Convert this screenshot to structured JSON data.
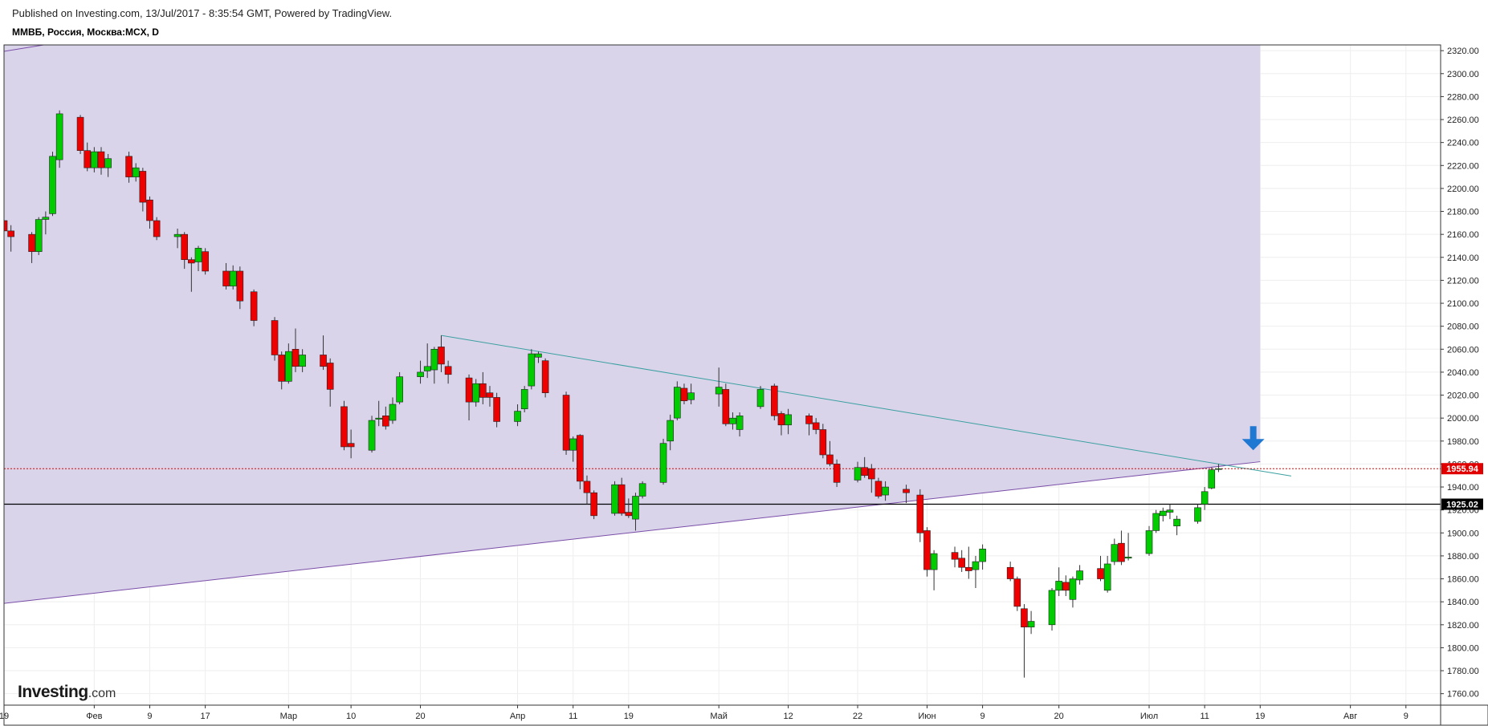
{
  "header": {
    "published": "Published on Investing.com, 13/Jul/2017 - 8:35:54 GMT, Powered by TradingView.",
    "symbol": "ММВБ, Россия, Москва:MCX, D"
  },
  "logo": {
    "brand": "Investing",
    "domain": ".com"
  },
  "colors": {
    "up": "#00cc00",
    "down": "#ee0000",
    "shade": "#d8d2ea",
    "upper_trend": "#3aa0a0",
    "lower_trend": "#7a4ea8",
    "current_price": "#e00000",
    "marker": "#1f78d1"
  },
  "chart_data": {
    "type": "candlestick",
    "x_domain": [
      "2017-01-19",
      "2017-08-14"
    ],
    "ylim": [
      1750,
      2325
    ],
    "y_ticks": [
      1760,
      1780,
      1800,
      1820,
      1840,
      1860,
      1880,
      1900,
      1920,
      1940,
      1960,
      1980,
      2000,
      2020,
      2040,
      2060,
      2080,
      2100,
      2120,
      2140,
      2160,
      2180,
      2200,
      2220,
      2240,
      2260,
      2280,
      2300,
      2320
    ],
    "x_ticks": [
      {
        "date": "2017-01-19",
        "label": "19"
      },
      {
        "date": "2017-02-01",
        "label": "Фев"
      },
      {
        "date": "2017-02-09",
        "label": "9"
      },
      {
        "date": "2017-02-17",
        "label": "17"
      },
      {
        "date": "2017-03-01",
        "label": "Мар"
      },
      {
        "date": "2017-03-10",
        "label": "10"
      },
      {
        "date": "2017-03-20",
        "label": "20"
      },
      {
        "date": "2017-04-03",
        "label": "Апр"
      },
      {
        "date": "2017-04-11",
        "label": "11"
      },
      {
        "date": "2017-04-19",
        "label": "19"
      },
      {
        "date": "2017-05-02",
        "label": "Май"
      },
      {
        "date": "2017-05-12",
        "label": "12"
      },
      {
        "date": "2017-05-22",
        "label": "22"
      },
      {
        "date": "2017-06-01",
        "label": "Июн"
      },
      {
        "date": "2017-06-09",
        "label": "9"
      },
      {
        "date": "2017-06-20",
        "label": "20"
      },
      {
        "date": "2017-07-03",
        "label": "Июл"
      },
      {
        "date": "2017-07-11",
        "label": "11"
      },
      {
        "date": "2017-07-19",
        "label": "19"
      },
      {
        "date": "2017-08-01",
        "label": "Авг"
      },
      {
        "date": "2017-08-09",
        "label": "9"
      }
    ],
    "price_labels": [
      {
        "value": 1955.94,
        "text": "1955.94",
        "style": "red-dotted"
      },
      {
        "value": 1925.02,
        "text": "1925.02",
        "style": "black-solid"
      }
    ],
    "trendlines": [
      {
        "name": "upper",
        "from": {
          "date": "2017-03-23",
          "value": 2072
        },
        "to": {
          "date": "2017-07-20",
          "value": 1953
        }
      },
      {
        "name": "lower",
        "from": {
          "date": "2017-01-18",
          "value": 1838
        },
        "to": {
          "date": "2017-07-19",
          "value": 1962
        }
      }
    ],
    "shaded_region_until": "2017-07-19",
    "marker": {
      "type": "down-arrow",
      "date": "2017-07-18",
      "value": 1972
    },
    "candles": [
      {
        "d": "2017-01-19",
        "o": 2172,
        "h": 2178,
        "l": 2150,
        "c": 2163
      },
      {
        "d": "2017-01-20",
        "o": 2163,
        "h": 2168,
        "l": 2145,
        "c": 2158
      },
      {
        "d": "2017-01-23",
        "o": 2160,
        "h": 2162,
        "l": 2135,
        "c": 2145
      },
      {
        "d": "2017-01-24",
        "o": 2145,
        "h": 2175,
        "l": 2142,
        "c": 2173
      },
      {
        "d": "2017-01-25",
        "o": 2173,
        "h": 2180,
        "l": 2160,
        "c": 2175
      },
      {
        "d": "2017-01-26",
        "o": 2178,
        "h": 2232,
        "l": 2176,
        "c": 2228
      },
      {
        "d": "2017-01-27",
        "o": 2225,
        "h": 2268,
        "l": 2218,
        "c": 2265
      },
      {
        "d": "2017-01-30",
        "o": 2262,
        "h": 2264,
        "l": 2230,
        "c": 2233
      },
      {
        "d": "2017-01-31",
        "o": 2233,
        "h": 2240,
        "l": 2215,
        "c": 2218
      },
      {
        "d": "2017-02-01",
        "o": 2218,
        "h": 2236,
        "l": 2214,
        "c": 2232
      },
      {
        "d": "2017-02-02",
        "o": 2232,
        "h": 2236,
        "l": 2212,
        "c": 2218
      },
      {
        "d": "2017-02-03",
        "o": 2218,
        "h": 2230,
        "l": 2210,
        "c": 2226
      },
      {
        "d": "2017-02-06",
        "o": 2228,
        "h": 2232,
        "l": 2205,
        "c": 2210
      },
      {
        "d": "2017-02-07",
        "o": 2210,
        "h": 2222,
        "l": 2206,
        "c": 2218
      },
      {
        "d": "2017-02-08",
        "o": 2215,
        "h": 2218,
        "l": 2180,
        "c": 2188
      },
      {
        "d": "2017-02-09",
        "o": 2190,
        "h": 2193,
        "l": 2165,
        "c": 2172
      },
      {
        "d": "2017-02-10",
        "o": 2172,
        "h": 2175,
        "l": 2155,
        "c": 2158
      },
      {
        "d": "2017-02-13",
        "o": 2158,
        "h": 2165,
        "l": 2148,
        "c": 2160
      },
      {
        "d": "2017-02-14",
        "o": 2160,
        "h": 2162,
        "l": 2130,
        "c": 2138
      },
      {
        "d": "2017-02-15",
        "o": 2138,
        "h": 2140,
        "l": 2110,
        "c": 2135
      },
      {
        "d": "2017-02-16",
        "o": 2136,
        "h": 2150,
        "l": 2128,
        "c": 2148
      },
      {
        "d": "2017-02-17",
        "o": 2145,
        "h": 2148,
        "l": 2125,
        "c": 2128
      },
      {
        "d": "2017-02-20",
        "o": 2128,
        "h": 2135,
        "l": 2112,
        "c": 2115
      },
      {
        "d": "2017-02-21",
        "o": 2115,
        "h": 2133,
        "l": 2112,
        "c": 2128
      },
      {
        "d": "2017-02-22",
        "o": 2128,
        "h": 2132,
        "l": 2095,
        "c": 2102
      },
      {
        "d": "2017-02-24",
        "o": 2110,
        "h": 2112,
        "l": 2080,
        "c": 2085
      },
      {
        "d": "2017-02-27",
        "o": 2085,
        "h": 2088,
        "l": 2050,
        "c": 2055
      },
      {
        "d": "2017-02-28",
        "o": 2055,
        "h": 2058,
        "l": 2025,
        "c": 2032
      },
      {
        "d": "2017-03-01",
        "o": 2032,
        "h": 2065,
        "l": 2030,
        "c": 2058
      },
      {
        "d": "2017-03-02",
        "o": 2060,
        "h": 2078,
        "l": 2040,
        "c": 2045
      },
      {
        "d": "2017-03-03",
        "o": 2045,
        "h": 2060,
        "l": 2040,
        "c": 2055
      },
      {
        "d": "2017-03-06",
        "o": 2055,
        "h": 2072,
        "l": 2042,
        "c": 2045
      },
      {
        "d": "2017-03-07",
        "o": 2048,
        "h": 2052,
        "l": 2010,
        "c": 2025
      },
      {
        "d": "2017-03-09",
        "o": 2010,
        "h": 2015,
        "l": 1972,
        "c": 1975
      },
      {
        "d": "2017-03-10",
        "o": 1978,
        "h": 1990,
        "l": 1965,
        "c": 1975
      },
      {
        "d": "2017-03-13",
        "o": 1972,
        "h": 2002,
        "l": 1970,
        "c": 1998
      },
      {
        "d": "2017-03-14",
        "o": 1999,
        "h": 2015,
        "l": 1993,
        "c": 2000
      },
      {
        "d": "2017-03-15",
        "o": 2002,
        "h": 2010,
        "l": 1990,
        "c": 1993
      },
      {
        "d": "2017-03-16",
        "o": 1998,
        "h": 2018,
        "l": 1995,
        "c": 2012
      },
      {
        "d": "2017-03-17",
        "o": 2014,
        "h": 2040,
        "l": 2012,
        "c": 2036
      },
      {
        "d": "2017-03-20",
        "o": 2036,
        "h": 2050,
        "l": 2030,
        "c": 2040
      },
      {
        "d": "2017-03-21",
        "o": 2041,
        "h": 2065,
        "l": 2035,
        "c": 2045
      },
      {
        "d": "2017-03-22",
        "o": 2042,
        "h": 2062,
        "l": 2030,
        "c": 2060
      },
      {
        "d": "2017-03-23",
        "o": 2062,
        "h": 2072,
        "l": 2040,
        "c": 2047
      },
      {
        "d": "2017-03-24",
        "o": 2045,
        "h": 2050,
        "l": 2030,
        "c": 2038
      },
      {
        "d": "2017-03-27",
        "o": 2035,
        "h": 2038,
        "l": 1998,
        "c": 2014
      },
      {
        "d": "2017-03-28",
        "o": 2014,
        "h": 2034,
        "l": 2010,
        "c": 2030
      },
      {
        "d": "2017-03-29",
        "o": 2030,
        "h": 2040,
        "l": 2012,
        "c": 2018
      },
      {
        "d": "2017-03-30",
        "o": 2022,
        "h": 2028,
        "l": 2010,
        "c": 2018
      },
      {
        "d": "2017-03-31",
        "o": 2018,
        "h": 2022,
        "l": 1992,
        "c": 1997
      },
      {
        "d": "2017-04-03",
        "o": 1997,
        "h": 2012,
        "l": 1993,
        "c": 2006
      },
      {
        "d": "2017-04-04",
        "o": 2008,
        "h": 2028,
        "l": 2005,
        "c": 2025
      },
      {
        "d": "2017-04-05",
        "o": 2028,
        "h": 2060,
        "l": 2025,
        "c": 2056
      },
      {
        "d": "2017-04-06",
        "o": 2053,
        "h": 2058,
        "l": 2048,
        "c": 2056
      },
      {
        "d": "2017-04-07",
        "o": 2050,
        "h": 2052,
        "l": 2018,
        "c": 2022
      },
      {
        "d": "2017-04-10",
        "o": 2020,
        "h": 2023,
        "l": 1968,
        "c": 1972
      },
      {
        "d": "2017-04-11",
        "o": 1972,
        "h": 1984,
        "l": 1962,
        "c": 1982
      },
      {
        "d": "2017-04-12",
        "o": 1985,
        "h": 1986,
        "l": 1938,
        "c": 1945
      },
      {
        "d": "2017-04-13",
        "o": 1945,
        "h": 1950,
        "l": 1925,
        "c": 1935
      },
      {
        "d": "2017-04-14",
        "o": 1935,
        "h": 1937,
        "l": 1912,
        "c": 1915
      },
      {
        "d": "2017-04-17",
        "o": 1917,
        "h": 1945,
        "l": 1915,
        "c": 1942
      },
      {
        "d": "2017-04-18",
        "o": 1942,
        "h": 1948,
        "l": 1915,
        "c": 1917
      },
      {
        "d": "2017-04-19",
        "o": 1918,
        "h": 1930,
        "l": 1913,
        "c": 1915
      },
      {
        "d": "2017-04-20",
        "o": 1912,
        "h": 1935,
        "l": 1902,
        "c": 1932
      },
      {
        "d": "2017-04-21",
        "o": 1932,
        "h": 1945,
        "l": 1930,
        "c": 1943
      },
      {
        "d": "2017-04-24",
        "o": 1944,
        "h": 1982,
        "l": 1942,
        "c": 1978
      },
      {
        "d": "2017-04-25",
        "o": 1980,
        "h": 2003,
        "l": 1972,
        "c": 1998
      },
      {
        "d": "2017-04-26",
        "o": 2000,
        "h": 2032,
        "l": 1998,
        "c": 2027
      },
      {
        "d": "2017-04-27",
        "o": 2026,
        "h": 2030,
        "l": 2012,
        "c": 2015
      },
      {
        "d": "2017-04-28",
        "o": 2016,
        "h": 2030,
        "l": 2012,
        "c": 2022
      },
      {
        "d": "2017-05-02",
        "o": 2021,
        "h": 2044,
        "l": 2010,
        "c": 2027
      },
      {
        "d": "2017-05-03",
        "o": 2025,
        "h": 2030,
        "l": 1993,
        "c": 1995
      },
      {
        "d": "2017-05-04",
        "o": 1995,
        "h": 2005,
        "l": 1990,
        "c": 2000
      },
      {
        "d": "2017-05-05",
        "o": 1990,
        "h": 2005,
        "l": 1984,
        "c": 2002
      },
      {
        "d": "2017-05-08",
        "o": 2010,
        "h": 2028,
        "l": 2008,
        "c": 2025
      },
      {
        "d": "2017-05-10",
        "o": 2028,
        "h": 2030,
        "l": 1998,
        "c": 2002
      },
      {
        "d": "2017-05-11",
        "o": 2004,
        "h": 2006,
        "l": 1985,
        "c": 1994
      },
      {
        "d": "2017-05-12",
        "o": 1994,
        "h": 2008,
        "l": 1986,
        "c": 2003
      },
      {
        "d": "2017-05-15",
        "o": 2002,
        "h": 2004,
        "l": 1985,
        "c": 1995
      },
      {
        "d": "2017-05-16",
        "o": 1996,
        "h": 2000,
        "l": 1986,
        "c": 1990
      },
      {
        "d": "2017-05-17",
        "o": 1990,
        "h": 1995,
        "l": 1965,
        "c": 1968
      },
      {
        "d": "2017-05-18",
        "o": 1968,
        "h": 1980,
        "l": 1958,
        "c": 1960
      },
      {
        "d": "2017-05-19",
        "o": 1960,
        "h": 1964,
        "l": 1940,
        "c": 1944
      },
      {
        "d": "2017-05-22",
        "o": 1946,
        "h": 1962,
        "l": 1944,
        "c": 1957
      },
      {
        "d": "2017-05-23",
        "o": 1957,
        "h": 1966,
        "l": 1948,
        "c": 1950
      },
      {
        "d": "2017-05-24",
        "o": 1956,
        "h": 1960,
        "l": 1935,
        "c": 1947
      },
      {
        "d": "2017-05-25",
        "o": 1945,
        "h": 1948,
        "l": 1930,
        "c": 1932
      },
      {
        "d": "2017-05-26",
        "o": 1933,
        "h": 1945,
        "l": 1928,
        "c": 1940
      },
      {
        "d": "2017-05-29",
        "o": 1938,
        "h": 1942,
        "l": 1926,
        "c": 1935
      },
      {
        "d": "2017-05-31",
        "o": 1933,
        "h": 1938,
        "l": 1892,
        "c": 1900
      },
      {
        "d": "2017-06-01",
        "o": 1902,
        "h": 1905,
        "l": 1862,
        "c": 1868
      },
      {
        "d": "2017-06-02",
        "o": 1868,
        "h": 1885,
        "l": 1850,
        "c": 1882
      },
      {
        "d": "2017-06-05",
        "o": 1883,
        "h": 1888,
        "l": 1870,
        "c": 1877
      },
      {
        "d": "2017-06-06",
        "o": 1878,
        "h": 1885,
        "l": 1866,
        "c": 1870
      },
      {
        "d": "2017-06-07",
        "o": 1870,
        "h": 1888,
        "l": 1860,
        "c": 1867
      },
      {
        "d": "2017-06-08",
        "o": 1868,
        "h": 1880,
        "l": 1852,
        "c": 1875
      },
      {
        "d": "2017-06-09",
        "o": 1875,
        "h": 1890,
        "l": 1868,
        "c": 1886
      },
      {
        "d": "2017-06-13",
        "o": 1870,
        "h": 1875,
        "l": 1858,
        "c": 1860
      },
      {
        "d": "2017-06-14",
        "o": 1860,
        "h": 1862,
        "l": 1832,
        "c": 1836
      },
      {
        "d": "2017-06-15",
        "o": 1834,
        "h": 1838,
        "l": 1774,
        "c": 1818
      },
      {
        "d": "2017-06-16",
        "o": 1818,
        "h": 1832,
        "l": 1812,
        "c": 1823
      },
      {
        "d": "2017-06-19",
        "o": 1820,
        "h": 1852,
        "l": 1815,
        "c": 1850
      },
      {
        "d": "2017-06-20",
        "o": 1850,
        "h": 1870,
        "l": 1845,
        "c": 1858
      },
      {
        "d": "2017-06-21",
        "o": 1857,
        "h": 1863,
        "l": 1845,
        "c": 1850
      },
      {
        "d": "2017-06-22",
        "o": 1842,
        "h": 1862,
        "l": 1835,
        "c": 1860
      },
      {
        "d": "2017-06-23",
        "o": 1859,
        "h": 1872,
        "l": 1855,
        "c": 1867
      },
      {
        "d": "2017-06-26",
        "o": 1869,
        "h": 1880,
        "l": 1858,
        "c": 1860
      },
      {
        "d": "2017-06-27",
        "o": 1850,
        "h": 1880,
        "l": 1848,
        "c": 1873
      },
      {
        "d": "2017-06-28",
        "o": 1875,
        "h": 1895,
        "l": 1872,
        "c": 1890
      },
      {
        "d": "2017-06-29",
        "o": 1891,
        "h": 1902,
        "l": 1872,
        "c": 1875
      },
      {
        "d": "2017-06-30",
        "o": 1878,
        "h": 1900,
        "l": 1876,
        "c": 1879
      },
      {
        "d": "2017-07-03",
        "o": 1882,
        "h": 1906,
        "l": 1880,
        "c": 1902
      },
      {
        "d": "2017-07-04",
        "o": 1902,
        "h": 1920,
        "l": 1900,
        "c": 1917
      },
      {
        "d": "2017-07-05",
        "o": 1915,
        "h": 1922,
        "l": 1910,
        "c": 1919
      },
      {
        "d": "2017-07-06",
        "o": 1918,
        "h": 1925,
        "l": 1912,
        "c": 1920
      },
      {
        "d": "2017-07-07",
        "o": 1906,
        "h": 1915,
        "l": 1898,
        "c": 1912
      },
      {
        "d": "2017-07-10",
        "o": 1910,
        "h": 1925,
        "l": 1908,
        "c": 1922
      },
      {
        "d": "2017-07-11",
        "o": 1925,
        "h": 1940,
        "l": 1920,
        "c": 1936
      },
      {
        "d": "2017-07-12",
        "o": 1939,
        "h": 1957,
        "l": 1938,
        "c": 1955
      },
      {
        "d": "2017-07-13",
        "o": 1955.5,
        "h": 1960,
        "l": 1953,
        "c": 1955.94
      }
    ]
  }
}
